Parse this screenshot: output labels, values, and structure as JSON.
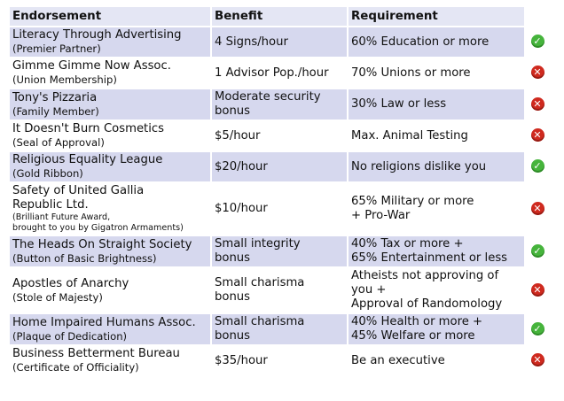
{
  "headers": {
    "endorsement": "Endorsement",
    "benefit": "Benefit",
    "requirement": "Requirement"
  },
  "rows": [
    {
      "name": "Literacy Through Advertising",
      "sub": "(Premier Partner)",
      "benefit": [
        "4 Signs/hour"
      ],
      "requirement": [
        "60% Education or more"
      ],
      "status": "check-icon"
    },
    {
      "name": "Gimme Gimme Now Assoc.",
      "sub": "(Union Membership)",
      "benefit": [
        "1 Advisor Pop./hour"
      ],
      "requirement": [
        "70% Unions or more"
      ],
      "status": "x-icon"
    },
    {
      "name": "Tony's Pizzaria",
      "sub": "(Family Member)",
      "benefit": [
        "Moderate security",
        "bonus"
      ],
      "requirement": [
        "30% Law or less"
      ],
      "status": "x-icon"
    },
    {
      "name": "It Doesn't Burn Cosmetics",
      "sub": "(Seal of Approval)",
      "benefit": [
        "$5/hour"
      ],
      "requirement": [
        "Max. Animal Testing"
      ],
      "status": "x-icon"
    },
    {
      "name": "Religious Equality League",
      "sub": "(Gold Ribbon)",
      "benefit": [
        "$20/hour"
      ],
      "requirement": [
        "No religions dislike you"
      ],
      "status": "check-icon"
    },
    {
      "name": "Safety of United Gallia",
      "name2": "Republic Ltd.",
      "tiny": [
        "(Brilliant Future Award,",
        "brought to you by Gigatron Armaments)"
      ],
      "benefit": [
        "$10/hour"
      ],
      "requirement": [
        "65% Military or more",
        "+ Pro-War"
      ],
      "status": "x-icon"
    },
    {
      "name": "The Heads On Straight Society",
      "sub": "(Button of Basic Brightness)",
      "benefit": [
        "Small integrity",
        "bonus"
      ],
      "requirement": [
        "40% Tax or more +",
        "65% Entertainment or less"
      ],
      "status": "check-icon"
    },
    {
      "name": "Apostles of Anarchy",
      "sub": "(Stole of Majesty)",
      "benefit": [
        "Small charisma",
        "bonus"
      ],
      "requirement": [
        "Atheists not approving of",
        "you +",
        "Approval of Randomology"
      ],
      "status": "x-icon"
    },
    {
      "name": "Home Impaired Humans Assoc.",
      "sub": "(Plaque of Dedication)",
      "benefit": [
        "Small charisma",
        "bonus"
      ],
      "requirement": [
        "40% Health or more +",
        "45% Welfare or more"
      ],
      "status": "check-icon"
    },
    {
      "name": "Business Betterment Bureau",
      "sub": "(Certificate of Officiality)",
      "benefit": [
        "$35/hour"
      ],
      "requirement": [
        "Be an executive"
      ],
      "status": "x-icon"
    }
  ],
  "colors": {
    "row_shade": "#d6d8ee",
    "header": "#e4e6f4",
    "ok": "#46b43c",
    "no": "#cf2a1f"
  }
}
